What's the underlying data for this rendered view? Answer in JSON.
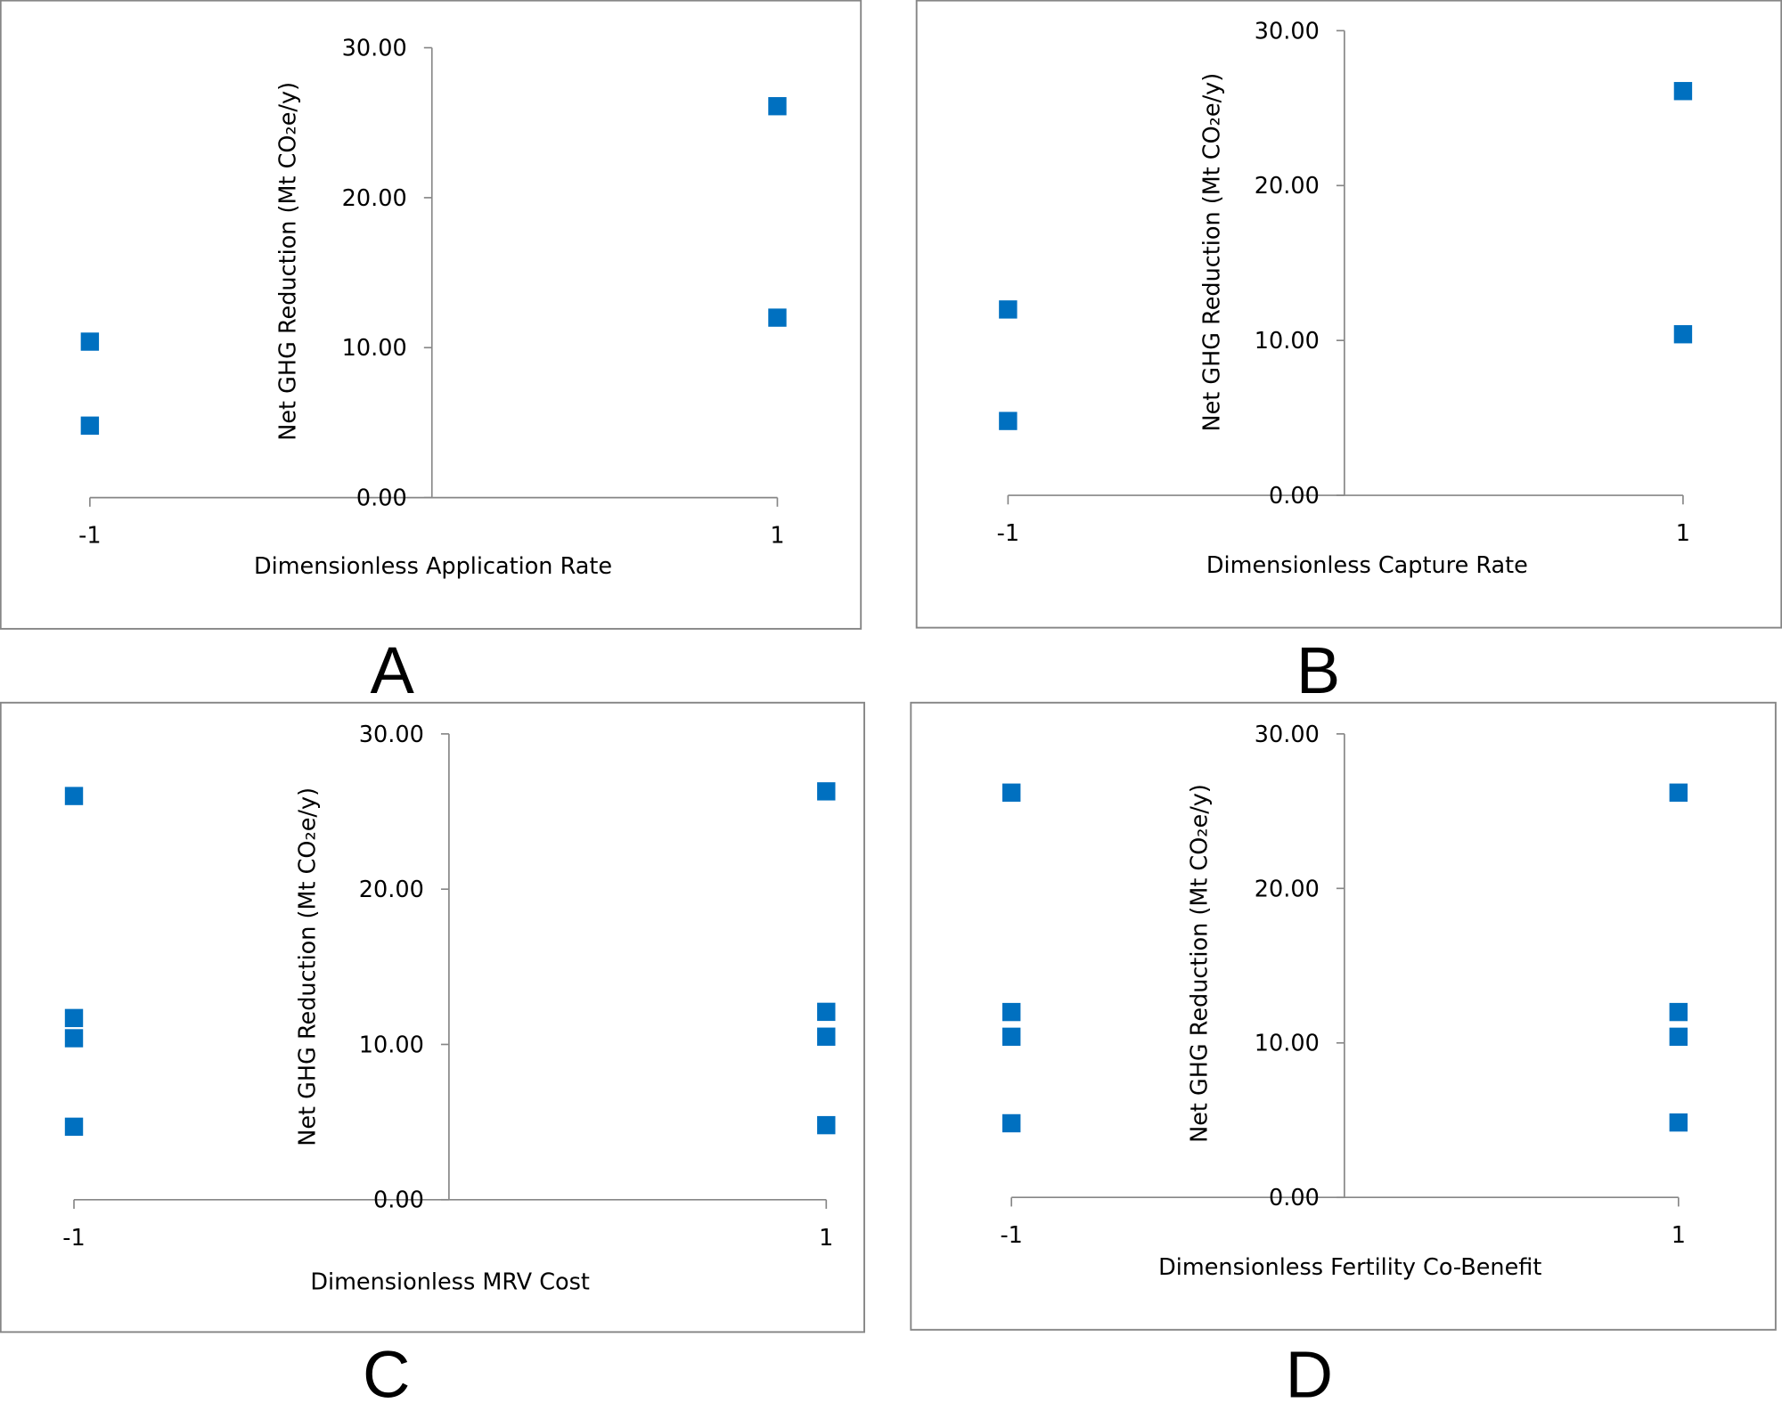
{
  "marker_color": "#0070C0",
  "chart_data": [
    {
      "panel": "A",
      "type": "scatter",
      "xlabel": "Dimensionless Application Rate",
      "ylabel": "Net GHG Reduction (Mt CO₂e/y)",
      "xticks": [
        "-1",
        "1"
      ],
      "yticks": [
        "0.00",
        "10.00",
        "20.00",
        "30.00"
      ],
      "ylim": [
        0,
        30
      ],
      "grid": false,
      "points": [
        {
          "x": -1,
          "y": 10.4
        },
        {
          "x": -1,
          "y": 4.8
        },
        {
          "x": 1,
          "y": 26.1
        },
        {
          "x": 1,
          "y": 12.0
        }
      ]
    },
    {
      "panel": "B",
      "type": "scatter",
      "xlabel": "Dimensionless Capture Rate",
      "ylabel": "Net GHG Reduction (Mt CO₂e/y)",
      "xticks": [
        "-1",
        "1"
      ],
      "yticks": [
        "0.00",
        "10.00",
        "20.00",
        "30.00"
      ],
      "ylim": [
        0,
        30
      ],
      "grid": false,
      "points": [
        {
          "x": -1,
          "y": 12.0
        },
        {
          "x": -1,
          "y": 4.8
        },
        {
          "x": 1,
          "y": 26.1
        },
        {
          "x": 1,
          "y": 10.4
        }
      ]
    },
    {
      "panel": "C",
      "type": "scatter",
      "xlabel": "Dimensionless MRV Cost",
      "ylabel": "Net GHG Reduction (Mt CO₂e/y)",
      "xticks": [
        "-1",
        "1"
      ],
      "yticks": [
        "0.00",
        "10.00",
        "20.00",
        "30.00"
      ],
      "ylim": [
        0,
        30
      ],
      "grid": false,
      "points": [
        {
          "x": -1,
          "y": 26.0
        },
        {
          "x": -1,
          "y": 11.7
        },
        {
          "x": -1,
          "y": 10.4
        },
        {
          "x": -1,
          "y": 4.7
        },
        {
          "x": 1,
          "y": 26.3
        },
        {
          "x": 1,
          "y": 12.1
        },
        {
          "x": 1,
          "y": 10.5
        },
        {
          "x": 1,
          "y": 4.8
        }
      ]
    },
    {
      "panel": "D",
      "type": "scatter",
      "xlabel": "Dimensionless Fertility Co-Benefit",
      "ylabel": "Net GHG Reduction (Mt CO₂e/y)",
      "xticks": [
        "-1",
        "1"
      ],
      "yticks": [
        "0.00",
        "10.00",
        "20.00",
        "30.00"
      ],
      "ylim": [
        0,
        30
      ],
      "grid": false,
      "points": [
        {
          "x": -1,
          "y": 26.2
        },
        {
          "x": -1,
          "y": 12.0
        },
        {
          "x": -1,
          "y": 10.4
        },
        {
          "x": -1,
          "y": 4.8
        },
        {
          "x": 1,
          "y": 26.2
        },
        {
          "x": 1,
          "y": 12.0
        },
        {
          "x": 1,
          "y": 10.4
        },
        {
          "x": 1,
          "y": 4.85
        }
      ]
    }
  ]
}
